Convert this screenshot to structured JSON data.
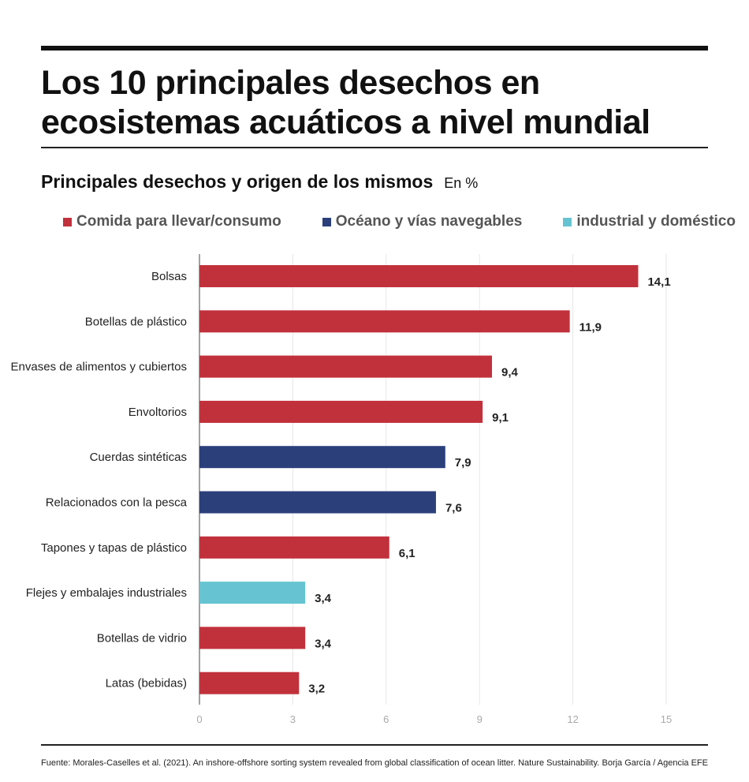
{
  "title": "Los 10 principales desechos en ecosistemas acuáticos a nivel mundial",
  "subtitle": "Principales desechos y origen de los mismos",
  "unit": "En %",
  "legend": [
    {
      "label": "Comida para llevar/consumo",
      "color": "#c1313b"
    },
    {
      "label": "Océano y vías navegables",
      "color": "#2b3f7b"
    },
    {
      "label": "industrial y doméstico",
      "color": "#66c4d2"
    }
  ],
  "chart_data": {
    "type": "bar",
    "orientation": "horizontal",
    "categories": [
      "Bolsas",
      "Botellas de plástico",
      "Envases de alimentos y cubiertos",
      "Envoltorios",
      "Cuerdas sintéticas",
      "Relacionados con la pesca",
      "Tapones y tapas de plástico",
      "Flejes y embalajes industriales",
      "Botellas de vidrio",
      "Latas (bebidas)"
    ],
    "values": [
      14.1,
      11.9,
      9.4,
      9.1,
      7.9,
      7.6,
      6.1,
      3.4,
      3.4,
      3.2
    ],
    "value_labels": [
      "14,1",
      "11,9",
      "9,4",
      "9,1",
      "7,9",
      "7,6",
      "6,1",
      "3,4",
      "3,4",
      "3,2"
    ],
    "groups": [
      "Comida para llevar/consumo",
      "Comida para llevar/consumo",
      "Comida para llevar/consumo",
      "Comida para llevar/consumo",
      "Océano y vías navegables",
      "Océano y vías navegables",
      "Comida para llevar/consumo",
      "industrial y doméstico",
      "Comida para llevar/consumo",
      "Comida para llevar/consumo"
    ],
    "xlim": [
      0,
      15
    ],
    "xticks": [
      "0",
      "3",
      "6",
      "9",
      "12",
      "15"
    ],
    "grid": true
  },
  "footer": {
    "source": "Fuente: Morales-Caselles et al. (2021). An inshore-offshore sorting system revealed from global classification of ocean litter. Nature Sustainability.",
    "credit": "Borja García / Agencia EFE"
  }
}
